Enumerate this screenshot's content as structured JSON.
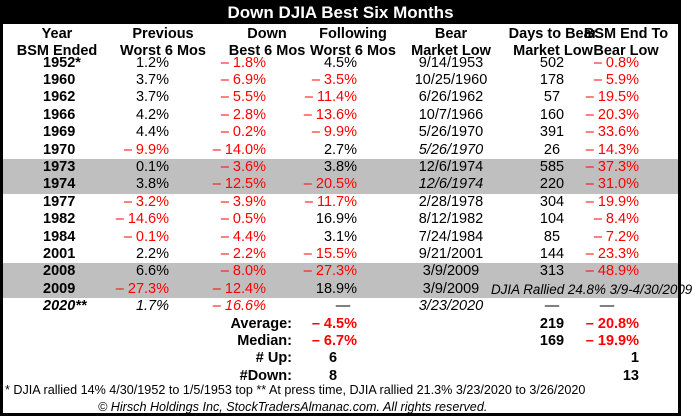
{
  "title": "Down DJIA Best Six Months",
  "headers": [
    [
      "Year",
      "BSM Ended"
    ],
    [
      "Previous",
      "Worst 6 Mos"
    ],
    [
      "Down",
      "Best 6 Mos"
    ],
    [
      "Following",
      "Worst 6 Mos"
    ],
    [
      "Bear",
      "Market Low"
    ],
    [
      "Days to Bear",
      "Market Low"
    ],
    [
      "BSM End To",
      "Bear Low"
    ]
  ],
  "rows": [
    {
      "year": "1952*",
      "prev": "1.2%",
      "down": "– 1.8%",
      "follow": "4.5%",
      "bear_low": "9/14/1953",
      "days": "502",
      "bsm_end": "– 0.8%"
    },
    {
      "year": "1960",
      "prev": "3.7%",
      "down": "– 6.9%",
      "follow": "– 3.5%",
      "bear_low": "10/25/1960",
      "days": "178",
      "bsm_end": "– 5.9%"
    },
    {
      "year": "1962",
      "prev": "3.7%",
      "down": "– 5.5%",
      "follow": "– 11.4%",
      "bear_low": "6/26/1962",
      "days": "57",
      "bsm_end": "– 19.5%"
    },
    {
      "year": "1966",
      "prev": "4.2%",
      "down": "– 2.8%",
      "follow": "– 13.6%",
      "bear_low": "10/7/1966",
      "days": "160",
      "bsm_end": "– 20.3%"
    },
    {
      "year": "1969",
      "prev": "4.4%",
      "down": "– 0.2%",
      "follow": "– 9.9%",
      "bear_low": "5/26/1970",
      "days": "391",
      "bsm_end": "– 33.6%"
    },
    {
      "year": "1970",
      "prev": "– 9.9%",
      "down": "– 14.0%",
      "follow": "2.7%",
      "bear_low": "5/26/1970",
      "days": "26",
      "bsm_end": "– 14.3%"
    },
    {
      "year": "1973",
      "prev": "0.1%",
      "down": "– 3.6%",
      "follow": "3.8%",
      "bear_low": "12/6/1974",
      "days": "585",
      "bsm_end": "– 37.3%"
    },
    {
      "year": "1974",
      "prev": "3.8%",
      "down": "– 12.5%",
      "follow": "– 20.5%",
      "bear_low": "12/6/1974",
      "days": "220",
      "bsm_end": "– 31.0%"
    },
    {
      "year": "1977",
      "prev": "– 3.2%",
      "down": "– 3.9%",
      "follow": "– 11.7%",
      "bear_low": "2/28/1978",
      "days": "304",
      "bsm_end": "– 19.9%"
    },
    {
      "year": "1982",
      "prev": "– 14.6%",
      "down": "– 0.5%",
      "follow": "16.9%",
      "bear_low": "8/12/1982",
      "days": "104",
      "bsm_end": "– 8.4%"
    },
    {
      "year": "1984",
      "prev": "– 0.1%",
      "down": "– 4.4%",
      "follow": "3.1%",
      "bear_low": "7/24/1984",
      "days": "85",
      "bsm_end": "– 7.2%"
    },
    {
      "year": "2001",
      "prev": "2.2%",
      "down": "– 2.2%",
      "follow": "– 15.5%",
      "bear_low": "9/21/2001",
      "days": "144",
      "bsm_end": "– 23.3%"
    },
    {
      "year": "2008",
      "prev": "6.6%",
      "down": "– 8.0%",
      "follow": "– 27.3%",
      "bear_low": "3/9/2009",
      "days": "313",
      "bsm_end": "– 48.9%"
    },
    {
      "year": "2009",
      "prev": "– 27.3%",
      "down": "– 12.4%",
      "follow": "18.9%",
      "bear_low": "3/9/2009",
      "note": "DJIA Rallied 24.8% 3/9-4/30/2009"
    },
    {
      "year": "2020**",
      "prev": "1.7%",
      "down": "– 16.6%",
      "follow": "—",
      "bear_low": "3/23/2020",
      "days": "—",
      "bsm_end": "—"
    }
  ],
  "summary": [
    {
      "label": "Average:",
      "follow": "– 4.5%",
      "days": "219",
      "bsm_end": "– 20.8%"
    },
    {
      "label": "Median:",
      "follow": "– 6.7%",
      "days": "169",
      "bsm_end": "– 19.9%"
    },
    {
      "label": "# Up:",
      "follow": "6",
      "days": "",
      "bsm_end": "1"
    },
    {
      "label": "#Down:",
      "follow": "8",
      "days": "",
      "bsm_end": "13"
    }
  ],
  "footnote": "* DJIA rallied 14% 4/30/1952 to 1/5/1953 top ** At press time, DJIA rallied 21.3% 3/23/2020 to 3/26/2020",
  "copyright": "© Hirsch Holdings Inc, StockTradersAlmanac.com. All rights reserved.",
  "colors": {
    "negative": "#ff0000",
    "shade": "#bfbfbf",
    "frame": "#000000"
  }
}
